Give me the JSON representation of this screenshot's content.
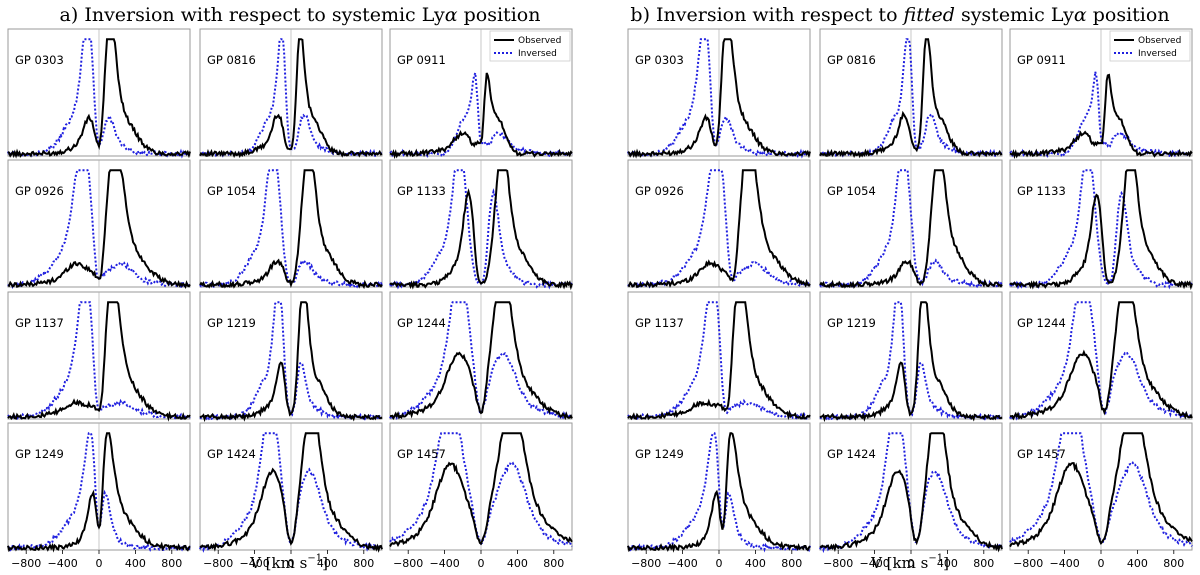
{
  "figure": {
    "xlabel": "V [km s",
    "xlabel_sup": "−1",
    "xlabel_close": "]",
    "panels": [
      {
        "prefix": "a) Inversion with respect to systemic Ly",
        "alpha": "α",
        "suffix": " position",
        "italic": ""
      },
      {
        "prefix": "b) Inversion with respect to ",
        "italic": "fitted",
        "suffix_main": " systemic Ly",
        "alpha": "α",
        "suffix": " position"
      }
    ],
    "legend": {
      "observed": "Observed",
      "inversed": "Inversed"
    },
    "colors": {
      "observed": "#000000",
      "inversed": "#1f1fdf",
      "zero_line": "#b0b0b0",
      "frame": "#9a9a9a"
    }
  },
  "chart_data": {
    "type": "line",
    "xlim": [
      -1000,
      1000
    ],
    "xticks": [
      -800,
      -400,
      0,
      400,
      800
    ],
    "xtick_labels": [
      "−800",
      "−400",
      "0",
      "400",
      "800"
    ],
    "ylim": [
      0,
      1.05
    ],
    "galaxies": [
      {
        "name": "GP 0303",
        "blue": [
          0.25,
          -100,
          70
        ],
        "red": [
          1.0,
          110,
          70
        ],
        "w": 1.2
      },
      {
        "name": "GP 0816",
        "blue": [
          0.3,
          -140,
          60
        ],
        "red": [
          1.0,
          90,
          50
        ],
        "w": 1.0
      },
      {
        "name": "GP 0911",
        "blue": [
          0.15,
          -200,
          90
        ],
        "red": [
          1.0,
          40,
          40
        ],
        "w": 1.3
      },
      {
        "name": "GP 0926",
        "blue": [
          0.15,
          -250,
          110
        ],
        "red": [
          1.0,
          170,
          90
        ],
        "w": 1.1
      },
      {
        "name": "GP 1054",
        "blue": [
          0.17,
          -150,
          80
        ],
        "red": [
          1.0,
          190,
          70
        ],
        "w": 1.2
      },
      {
        "name": "GP 1133",
        "blue": [
          0.7,
          -130,
          60
        ],
        "red": [
          1.0,
          230,
          70
        ],
        "w": 1.0
      },
      {
        "name": "GP 1137",
        "blue": [
          0.1,
          -250,
          120
        ],
        "red": [
          1.0,
          140,
          80
        ],
        "w": 1.2
      },
      {
        "name": "GP 1219",
        "blue": [
          0.45,
          -100,
          50
        ],
        "red": [
          1.0,
          130,
          55
        ],
        "w": 1.0
      },
      {
        "name": "GP 1244",
        "blue": [
          0.45,
          -240,
          130
        ],
        "red": [
          1.0,
          230,
          100
        ],
        "w": 1.2
      },
      {
        "name": "GP 1249",
        "blue": [
          0.0,
          -200,
          80
        ],
        "red": [
          1.0,
          40,
          90
        ],
        "w": 1.3
      },
      {
        "name": "GP 1424",
        "blue": [
          0.55,
          -200,
          120
        ],
        "red": [
          1.0,
          220,
          90
        ],
        "w": 1.0
      },
      {
        "name": "GP 1457",
        "blue": [
          0.6,
          -330,
          150
        ],
        "red": [
          1.0,
          330,
          130
        ],
        "w": 1.1
      }
    ],
    "fitted_shift": [
      -35,
      70,
      10,
      150,
      110,
      90,
      80,
      0,
      40,
      40,
      60,
      10
    ]
  }
}
